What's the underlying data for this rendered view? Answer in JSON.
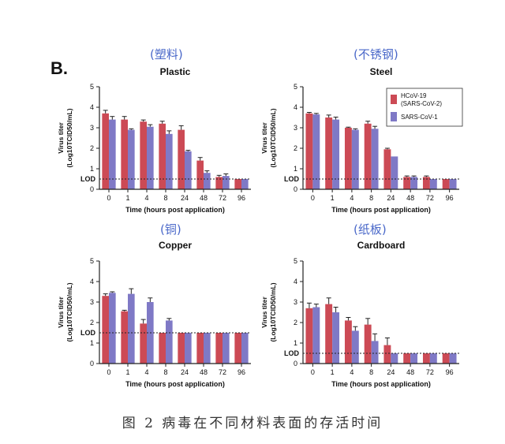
{
  "figure": {
    "panel_tag": "B.",
    "caption": "图 2 病毒在不同材料表面的存活时间",
    "chinese_labels": [
      "(塑料)",
      "(不锈钢)",
      "(铜)",
      "(纸板)"
    ]
  },
  "chart_data": [
    {
      "type": "bar",
      "title": "Plastic",
      "xlabel": "Time (hours post application)",
      "ylabel": [
        "Virus titer",
        "(Log10TCID50/mL)"
      ],
      "ylim": [
        0,
        5
      ],
      "yticks": [
        0,
        1,
        2,
        3,
        4,
        5
      ],
      "lod": 0.5,
      "lod_label": "LOD",
      "categories": [
        "0",
        "1",
        "4",
        "8",
        "24",
        "48",
        "72",
        "96"
      ],
      "series": [
        {
          "name": "HCoV-19 (SARS-CoV-2)",
          "values": [
            3.7,
            3.4,
            3.3,
            3.2,
            2.9,
            1.4,
            0.6,
            0.5
          ],
          "errors": [
            0.15,
            0.15,
            0.08,
            0.12,
            0.2,
            0.15,
            0.08,
            0.0
          ]
        },
        {
          "name": "SARS-CoV-1",
          "values": [
            3.4,
            2.9,
            3.05,
            2.7,
            1.85,
            0.8,
            0.65,
            0.5
          ],
          "errors": [
            0.15,
            0.05,
            0.1,
            0.15,
            0.05,
            0.1,
            0.1,
            0.0
          ]
        }
      ],
      "legend": false
    },
    {
      "type": "bar",
      "title": "Steel",
      "xlabel": "Time (hours post application)",
      "ylabel": [
        "Virus titer",
        "(Log10TCID50/mL)"
      ],
      "ylim": [
        0,
        5
      ],
      "yticks": [
        0,
        1,
        2,
        3,
        4,
        5
      ],
      "lod": 0.5,
      "lod_label": "LOD",
      "categories": [
        "0",
        "1",
        "4",
        "8",
        "24",
        "48",
        "72",
        "96"
      ],
      "series": [
        {
          "name": "HCoV-19 (SARS-CoV-2)",
          "values": [
            3.7,
            3.5,
            3.0,
            3.2,
            1.95,
            0.6,
            0.6,
            0.5
          ],
          "errors": [
            0.05,
            0.12,
            0.03,
            0.12,
            0.05,
            0.05,
            0.05,
            0.0
          ]
        },
        {
          "name": "SARS-CoV-1",
          "values": [
            3.65,
            3.4,
            2.9,
            2.95,
            1.6,
            0.6,
            0.5,
            0.5
          ],
          "errors": [
            0.05,
            0.12,
            0.05,
            0.12,
            0.0,
            0.05,
            0.0,
            0.0
          ]
        }
      ],
      "legend": true,
      "legend_position": "top-right",
      "legend_entries": [
        [
          "HCoV-19",
          "(SARS-CoV-2)"
        ],
        [
          "SARS-CoV-1"
        ]
      ]
    },
    {
      "type": "bar",
      "title": "Copper",
      "xlabel": "Time (hours post application)",
      "ylabel": [
        "Virus titer",
        "(Log10TCID50/mL)"
      ],
      "ylim": [
        0,
        5
      ],
      "yticks": [
        0,
        1,
        2,
        3,
        4,
        5
      ],
      "lod": 1.5,
      "lod_label": "LOD",
      "categories": [
        "0",
        "1",
        "4",
        "8",
        "24",
        "48",
        "72",
        "96"
      ],
      "series": [
        {
          "name": "HCoV-19 (SARS-CoV-2)",
          "values": [
            3.3,
            2.55,
            1.95,
            1.5,
            1.5,
            1.5,
            1.5,
            1.5
          ],
          "errors": [
            0.1,
            0.05,
            0.2,
            0.0,
            0.0,
            0.0,
            0.0,
            0.0
          ]
        },
        {
          "name": "SARS-CoV-1",
          "values": [
            3.45,
            3.4,
            3.0,
            2.1,
            1.5,
            1.5,
            1.5,
            1.5
          ],
          "errors": [
            0.05,
            0.25,
            0.2,
            0.1,
            0.0,
            0.0,
            0.0,
            0.0
          ]
        }
      ],
      "legend": false
    },
    {
      "type": "bar",
      "title": "Cardboard",
      "xlabel": "Time (hours post application)",
      "ylabel": [
        "Virus titer",
        "(Log10TCID50/mL)"
      ],
      "ylim": [
        0,
        5
      ],
      "yticks": [
        0,
        1,
        2,
        3,
        4,
        5
      ],
      "lod": 0.5,
      "lod_label": "LOD",
      "categories": [
        "0",
        "1",
        "4",
        "8",
        "24",
        "48",
        "72",
        "96"
      ],
      "series": [
        {
          "name": "HCoV-19 (SARS-CoV-2)",
          "values": [
            2.7,
            2.9,
            2.1,
            1.9,
            0.9,
            0.5,
            0.5,
            0.5
          ],
          "errors": [
            0.25,
            0.3,
            0.15,
            0.3,
            0.35,
            0.0,
            0.0,
            0.0
          ]
        },
        {
          "name": "SARS-CoV-1",
          "values": [
            2.75,
            2.5,
            1.6,
            1.1,
            0.5,
            0.5,
            0.5,
            0.5
          ],
          "errors": [
            0.15,
            0.25,
            0.2,
            0.35,
            0.0,
            0.0,
            0.0,
            0.0
          ]
        }
      ],
      "legend": false
    }
  ],
  "colors": {
    "series_1": "#cc4a55",
    "series_2": "#7f79c6",
    "axis": "#222222",
    "chinese_label": "#4a68c9"
  }
}
